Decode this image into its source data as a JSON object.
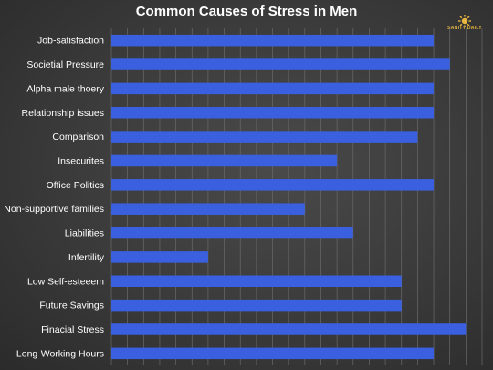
{
  "chart_data": {
    "type": "bar",
    "orientation": "horizontal",
    "title": "Common Causes of Stress in Men",
    "categories": [
      "Job-satisfaction",
      "Societial Pressure",
      "Alpha male thoery",
      "Relationship issues",
      "Comparison",
      "Insecurites",
      "Office Politics",
      "Non-supportive families",
      "Liabilities",
      "Infertility",
      "Low Self-esteeem",
      "Future Savings",
      "Finacial Stress",
      "Long-Working Hours"
    ],
    "values": [
      20,
      21,
      20,
      20,
      19,
      14,
      20,
      12,
      15,
      6,
      18,
      18,
      22,
      20
    ],
    "xlim": [
      0,
      23
    ],
    "grid": "vertical",
    "legend": "none",
    "colors": {
      "bar": "#3a60e0",
      "grid": "#6a6a6a",
      "text": "#ffffff"
    }
  },
  "logo": {
    "text": "SANITY DAILY",
    "icon": "sunburst-icon",
    "color": "#e8b640"
  }
}
